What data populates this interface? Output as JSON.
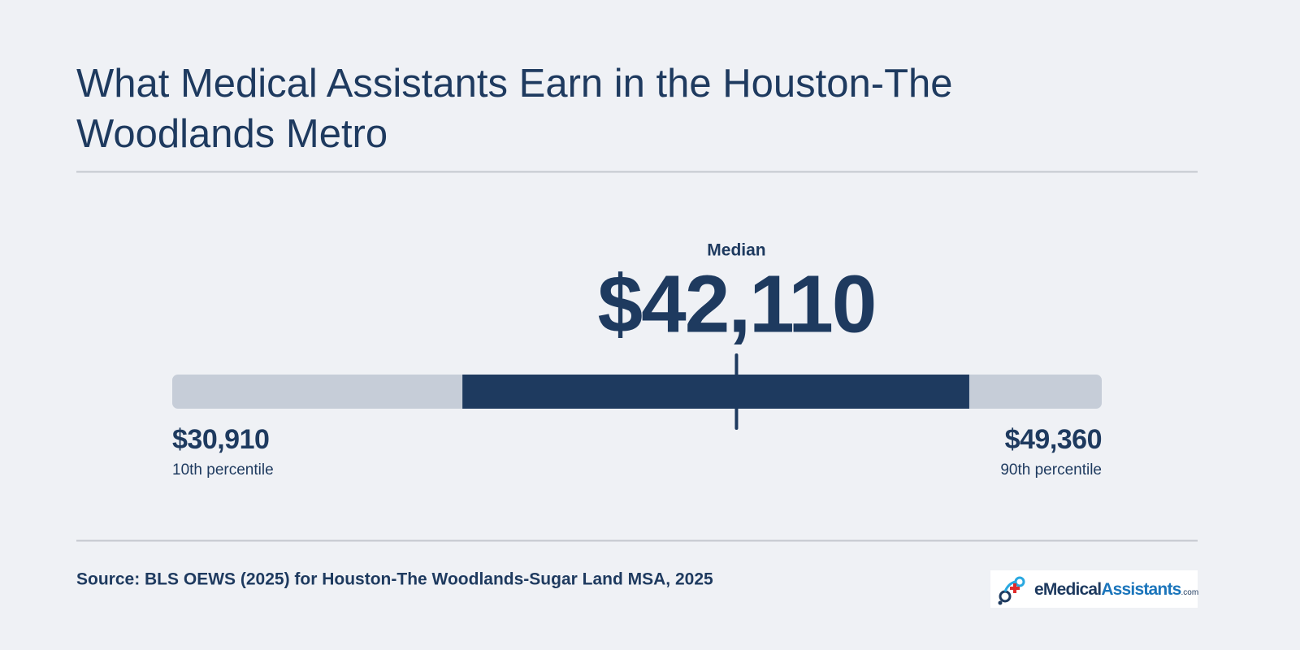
{
  "chart_data": {
    "type": "range",
    "title": "What Medical Assistants Earn in the Houston-The Woodlands Metro",
    "source": "Source: BLS OEWS (2025) for Houston-The Woodlands-Sugar Land MSA, 2025",
    "median": {
      "value": 42110,
      "label": "$42,110",
      "caption": "Median"
    },
    "low": {
      "value": 30910,
      "label": "$30,910",
      "caption": "10th percentile"
    },
    "high": {
      "value": 49360,
      "label": "$49,360",
      "caption": "90th percentile"
    },
    "band": [
      36670,
      46730
    ],
    "track_color": "#c6cdd8",
    "band_color": "#1e3a5f"
  },
  "logo": {
    "brand": "eMedical",
    "brand2": "Assistants",
    "suffix": ".com"
  }
}
